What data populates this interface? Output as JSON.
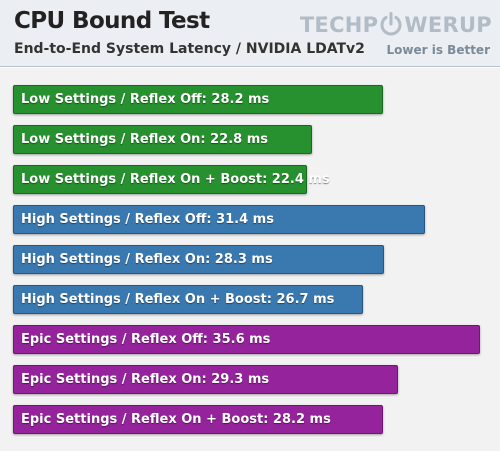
{
  "header": {
    "title": "CPU Bound Test",
    "subtitle": "End-to-End System Latency / NVIDIA LDATv2",
    "note": "Lower is Better",
    "logo_left": "TECHP",
    "logo_right": "WERUP",
    "logo_icon": "power-icon"
  },
  "colors": {
    "low": "#26912e",
    "high": "#3a78b0",
    "epic": "#95239b",
    "logo": "#b2bcc6",
    "background": "#f2f2f2"
  },
  "chart_data": {
    "type": "bar",
    "orientation": "horizontal",
    "unit": "ms",
    "xlim": [
      0,
      36.8
    ],
    "grid": false,
    "legend": "none",
    "categories": [
      "Low Settings / Reflex Off",
      "Low Settings / Reflex On",
      "Low Settings / Reflex On + Boost",
      "High Settings / Reflex Off",
      "High Settings / Reflex On",
      "High Settings / Reflex On + Boost",
      "Epic Settings / Reflex Off",
      "Epic Settings / Reflex On",
      "Epic Settings / Reflex On + Boost"
    ],
    "values": [
      28.2,
      22.8,
      22.4,
      31.4,
      28.3,
      26.7,
      35.6,
      29.3,
      28.2
    ],
    "groups": [
      "low",
      "low",
      "low",
      "high",
      "high",
      "high",
      "epic",
      "epic",
      "epic"
    ],
    "labels": [
      "Low Settings / Reflex Off: 28.2 ms",
      "Low Settings / Reflex On: 22.8 ms",
      "Low Settings / Reflex On + Boost: 22.4 ms",
      "High Settings / Reflex Off: 31.4 ms",
      "High Settings / Reflex On: 28.3 ms",
      "High Settings / Reflex On + Boost: 26.7 ms",
      "Epic Settings / Reflex Off: 35.6 ms",
      "Epic Settings / Reflex On: 29.3 ms",
      "Epic Settings / Reflex On + Boost: 28.2 ms"
    ]
  }
}
